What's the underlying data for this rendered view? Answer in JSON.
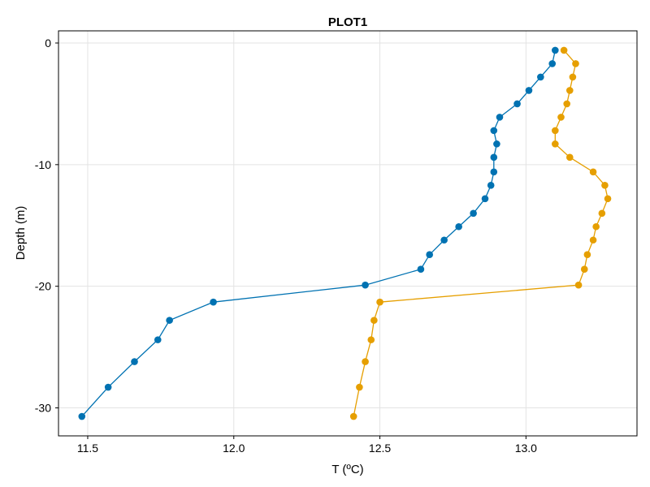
{
  "chart_data": {
    "type": "scatter",
    "title": "PLOT1",
    "xlabel": "T (ºC)",
    "ylabel": "Depth (m)",
    "xlim": [
      11.4,
      13.38
    ],
    "ylim": [
      -32.3,
      1.0
    ],
    "xticks": [
      11.5,
      12.0,
      12.5,
      13.0
    ],
    "xtick_labels": [
      "11.5",
      "12.0",
      "12.5",
      "13.0"
    ],
    "yticks": [
      0,
      -10,
      -20,
      -30
    ],
    "ytick_labels": [
      "0",
      "-10",
      "-20",
      "-30"
    ],
    "grid": true,
    "series": [
      {
        "color": "#0072B2",
        "points": [
          [
            13.1,
            -0.6
          ],
          [
            13.09,
            -1.7
          ],
          [
            13.05,
            -2.8
          ],
          [
            13.01,
            -3.9
          ],
          [
            12.97,
            -5.0
          ],
          [
            12.91,
            -6.1
          ],
          [
            12.89,
            -7.2
          ],
          [
            12.9,
            -8.3
          ],
          [
            12.89,
            -9.4
          ],
          [
            12.89,
            -10.6
          ],
          [
            12.88,
            -11.7
          ],
          [
            12.86,
            -12.8
          ],
          [
            12.82,
            -14.0
          ],
          [
            12.77,
            -15.1
          ],
          [
            12.72,
            -16.2
          ],
          [
            12.67,
            -17.4
          ],
          [
            12.64,
            -18.6
          ],
          [
            12.45,
            -19.9
          ],
          [
            11.93,
            -21.3
          ],
          [
            11.78,
            -22.8
          ],
          [
            11.74,
            -24.4
          ],
          [
            11.66,
            -26.2
          ],
          [
            11.57,
            -28.3
          ],
          [
            11.48,
            -30.7
          ]
        ]
      },
      {
        "color": "#E69F00",
        "points": [
          [
            13.13,
            -0.6
          ],
          [
            13.17,
            -1.7
          ],
          [
            13.16,
            -2.8
          ],
          [
            13.15,
            -3.9
          ],
          [
            13.14,
            -5.0
          ],
          [
            13.12,
            -6.1
          ],
          [
            13.1,
            -7.2
          ],
          [
            13.1,
            -8.3
          ],
          [
            13.15,
            -9.4
          ],
          [
            13.23,
            -10.6
          ],
          [
            13.27,
            -11.7
          ],
          [
            13.28,
            -12.8
          ],
          [
            13.26,
            -14.0
          ],
          [
            13.24,
            -15.1
          ],
          [
            13.23,
            -16.2
          ],
          [
            13.21,
            -17.4
          ],
          [
            13.2,
            -18.6
          ],
          [
            13.18,
            -19.9
          ],
          [
            12.5,
            -21.3
          ],
          [
            12.48,
            -22.8
          ],
          [
            12.47,
            -24.4
          ],
          [
            12.45,
            -26.2
          ],
          [
            12.43,
            -28.3
          ],
          [
            12.41,
            -30.7
          ]
        ]
      }
    ]
  }
}
